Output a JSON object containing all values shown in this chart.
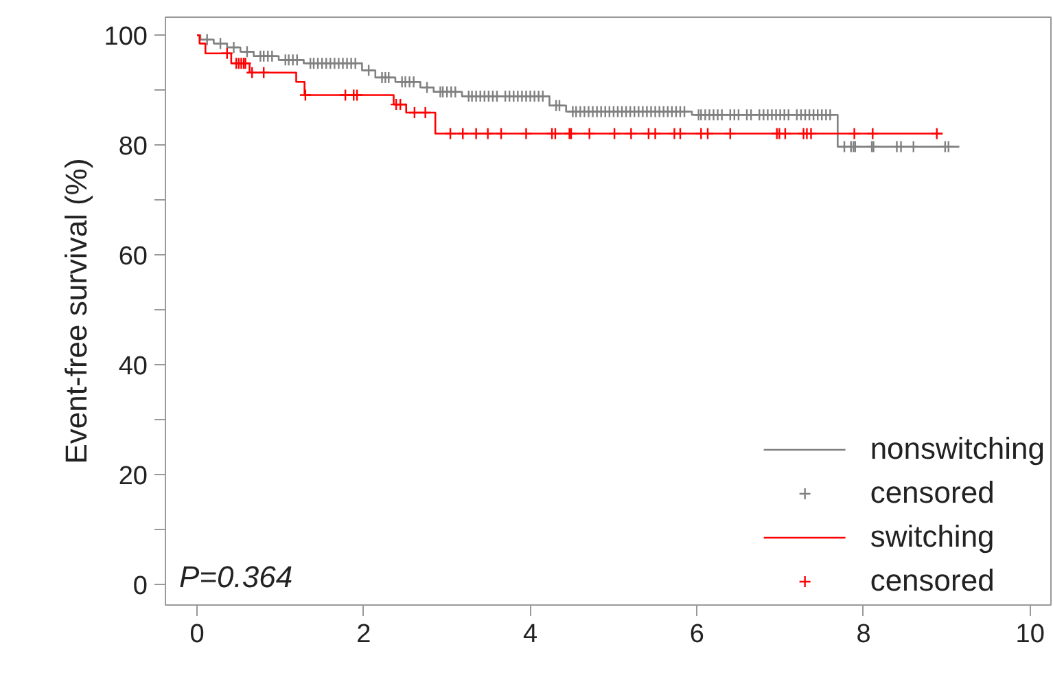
{
  "chart_data": {
    "type": "step",
    "ylabel": "Event-free survival (%)",
    "xlim": [
      -0.38,
      10.25
    ],
    "ylim": [
      -3.8,
      103.3
    ],
    "xticks": [
      0,
      2,
      4,
      6,
      8,
      10
    ],
    "yticks": [
      0,
      {
        "value": 10,
        "label": null
      },
      20,
      {
        "value": 30,
        "label": null
      },
      40,
      {
        "value": 50,
        "label": null
      },
      60,
      {
        "value": 70,
        "label": null
      },
      80,
      {
        "value": 90,
        "label": null
      },
      100
    ],
    "grid": false,
    "legend": "bottom right",
    "line_style": "solid",
    "annotations": [
      "P=0.364"
    ],
    "series": [
      {
        "name": "nonswitching",
        "color": "#808080",
        "x": [
          0,
          0.04,
          0.2,
          0.36,
          0.52,
          0.68,
          0.98,
          1.28,
          1.98,
          2.14,
          2.38,
          2.68,
          2.84,
          3.18,
          4.23,
          4.43,
          5.94,
          7.69,
          9.15
        ],
        "values": [
          100,
          99.2,
          98.5,
          97.8,
          97.0,
          96.2,
          95.5,
          94.9,
          93.6,
          92.3,
          91.5,
          90.5,
          89.7,
          88.9,
          87.2,
          86.1,
          85.5,
          79.7,
          79.7
        ]
      },
      {
        "name": "censored",
        "type": "scatter",
        "marker": "cross",
        "color": "#808080",
        "x": [
          0.12,
          0.28,
          0.44,
          0.6,
          0.76,
          0.8,
          0.85,
          0.9,
          1.06,
          1.1,
          1.15,
          1.2,
          1.36,
          1.4,
          1.45,
          1.5,
          1.55,
          1.6,
          1.65,
          1.7,
          1.75,
          1.8,
          1.85,
          1.9,
          2.06,
          2.22,
          2.26,
          2.3,
          2.46,
          2.5,
          2.55,
          2.6,
          2.76,
          2.92,
          2.95,
          3.0,
          3.05,
          3.1,
          3.26,
          3.3,
          3.35,
          3.4,
          3.45,
          3.5,
          3.55,
          3.6,
          3.7,
          3.75,
          3.8,
          3.85,
          3.9,
          3.95,
          4.0,
          4.05,
          4.1,
          4.15,
          4.31,
          4.35,
          4.51,
          4.55,
          4.6,
          4.65,
          4.7,
          4.75,
          4.8,
          4.85,
          4.9,
          4.95,
          5.0,
          5.05,
          5.1,
          5.15,
          5.2,
          5.25,
          5.3,
          5.35,
          5.4,
          5.45,
          5.5,
          5.55,
          5.6,
          5.65,
          5.7,
          5.75,
          5.8,
          5.85,
          6.02,
          6.05,
          6.1,
          6.15,
          6.2,
          6.25,
          6.3,
          6.4,
          6.45,
          6.5,
          6.6,
          6.65,
          6.75,
          6.8,
          6.85,
          6.9,
          6.95,
          7.0,
          7.05,
          7.1,
          7.2,
          7.25,
          7.3,
          7.35,
          7.4,
          7.45,
          7.5,
          7.55,
          7.6,
          7.77,
          7.85,
          7.88,
          7.9,
          8.1,
          8.12,
          8.4,
          8.45,
          8.6,
          8.98,
          9.02
        ],
        "values": [
          99.2,
          98.5,
          97.8,
          97.0,
          96.2,
          96.2,
          96.2,
          96.2,
          95.5,
          95.5,
          95.5,
          95.5,
          94.9,
          94.9,
          94.9,
          94.9,
          94.9,
          94.9,
          94.9,
          94.9,
          94.9,
          94.9,
          94.9,
          94.9,
          93.6,
          92.3,
          92.3,
          92.3,
          91.5,
          91.5,
          91.5,
          91.5,
          90.5,
          89.7,
          89.7,
          89.7,
          89.7,
          89.7,
          88.9,
          88.9,
          88.9,
          88.9,
          88.9,
          88.9,
          88.9,
          88.9,
          88.9,
          88.9,
          88.9,
          88.9,
          88.9,
          88.9,
          88.9,
          88.9,
          88.9,
          88.9,
          87.2,
          87.2,
          86.1,
          86.1,
          86.1,
          86.1,
          86.1,
          86.1,
          86.1,
          86.1,
          86.1,
          86.1,
          86.1,
          86.1,
          86.1,
          86.1,
          86.1,
          86.1,
          86.1,
          86.1,
          86.1,
          86.1,
          86.1,
          86.1,
          86.1,
          86.1,
          86.1,
          86.1,
          86.1,
          86.1,
          85.5,
          85.5,
          85.5,
          85.5,
          85.5,
          85.5,
          85.5,
          85.5,
          85.5,
          85.5,
          85.5,
          85.5,
          85.5,
          85.5,
          85.5,
          85.5,
          85.5,
          85.5,
          85.5,
          85.5,
          85.5,
          85.5,
          85.5,
          85.5,
          85.5,
          85.5,
          85.5,
          85.5,
          85.5,
          79.7,
          79.7,
          79.7,
          79.7,
          79.7,
          79.7,
          79.7,
          79.7,
          79.7,
          79.7,
          79.7
        ]
      },
      {
        "name": "switching",
        "color": "#ff0000",
        "x": [
          0,
          0.03,
          0.1,
          0.41,
          0.63,
          1.19,
          1.29,
          2.36,
          2.51,
          2.86,
          8.95
        ],
        "values": [
          100,
          98.5,
          96.7,
          94.9,
          93.2,
          91.5,
          89.1,
          87.4,
          85.9,
          82.1,
          82.1
        ]
      },
      {
        "name": "censored",
        "type": "scatter",
        "marker": "cross",
        "color": "#ff0000",
        "x": [
          0.36,
          0.47,
          0.5,
          0.53,
          0.56,
          0.58,
          0.66,
          0.8,
          1.3,
          1.78,
          1.88,
          1.92,
          2.39,
          2.44,
          2.61,
          2.74,
          3.04,
          3.19,
          3.35,
          3.49,
          3.65,
          3.95,
          4.26,
          4.3,
          4.47,
          4.49,
          4.71,
          5.01,
          5.21,
          5.42,
          5.5,
          5.73,
          5.8,
          6.05,
          6.13,
          6.4,
          6.96,
          6.99,
          7.06,
          7.28,
          7.32,
          7.37,
          7.89,
          8.11,
          8.88
        ],
        "values": [
          96.7,
          94.9,
          94.9,
          94.9,
          94.9,
          94.9,
          93.2,
          93.2,
          89.1,
          89.1,
          89.1,
          89.1,
          87.4,
          87.4,
          85.9,
          85.9,
          82.1,
          82.1,
          82.1,
          82.1,
          82.1,
          82.1,
          82.1,
          82.1,
          82.1,
          82.1,
          82.1,
          82.1,
          82.1,
          82.1,
          82.1,
          82.1,
          82.1,
          82.1,
          82.1,
          82.1,
          82.1,
          82.1,
          82.1,
          82.1,
          82.1,
          82.1,
          82.1,
          82.1,
          82.1
        ]
      }
    ]
  }
}
